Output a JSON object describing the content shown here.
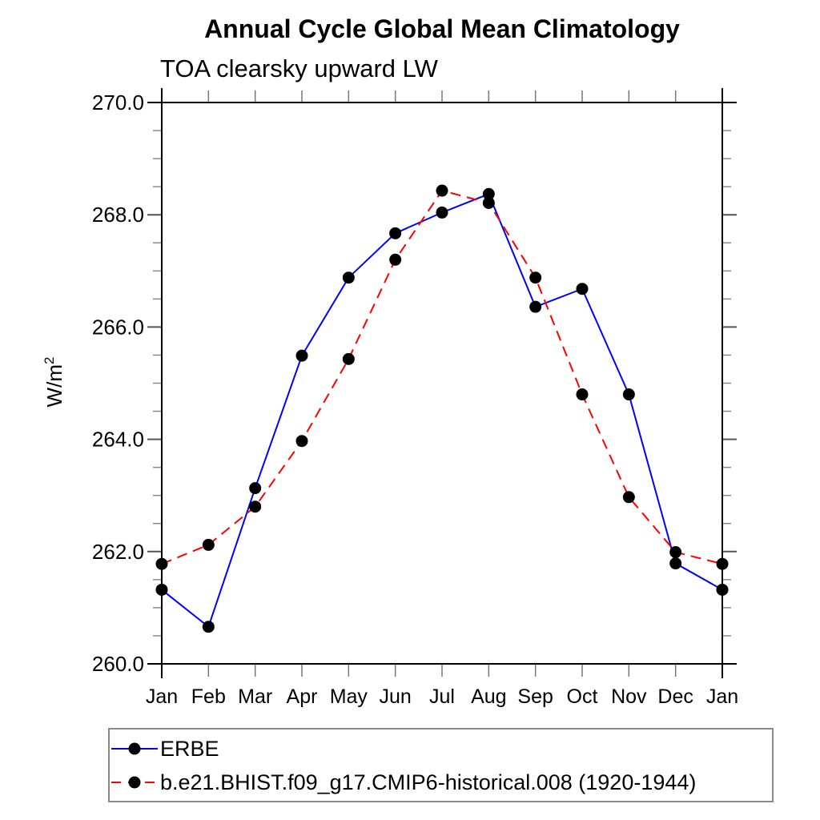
{
  "chart_data": {
    "type": "line",
    "title": "Annual Cycle Global Mean Climatology",
    "subtitle": "TOA clearsky upward LW",
    "ylabel": "W/m2",
    "ylabel_base": "W/m",
    "ylabel_exponent": "2",
    "categories": [
      "Jan",
      "Feb",
      "Mar",
      "Apr",
      "May",
      "Jun",
      "Jul",
      "Aug",
      "Sep",
      "Oct",
      "Nov",
      "Dec",
      "Jan"
    ],
    "ylim": [
      260.0,
      270.0
    ],
    "yticks_major": [
      260,
      262,
      264,
      266,
      268,
      270
    ],
    "ytick_labels": [
      "260.0",
      "262.0",
      "264.0",
      "266.0",
      "268.0",
      "270.0"
    ],
    "ytick_minor_step": 0.5,
    "grid": false,
    "legend_position": "bottom-left",
    "marker": "filled-circle",
    "marker_color": "#000000",
    "series": [
      {
        "name": "ERBE",
        "color": "#0000ff",
        "style": "solid",
        "values": [
          261.32,
          260.66,
          263.13,
          265.49,
          266.88,
          267.67,
          268.04,
          268.37,
          266.36,
          266.68,
          264.8,
          261.79,
          261.32
        ]
      },
      {
        "name": "b.e21.BHIST.f09_g17.CMIP6-historical.008 (1920-1944)",
        "color": "#ff0000",
        "style": "dashed",
        "values": [
          261.78,
          262.12,
          262.8,
          263.97,
          265.43,
          267.2,
          268.43,
          268.21,
          266.88,
          264.8,
          262.97,
          261.99,
          261.78
        ]
      }
    ]
  }
}
